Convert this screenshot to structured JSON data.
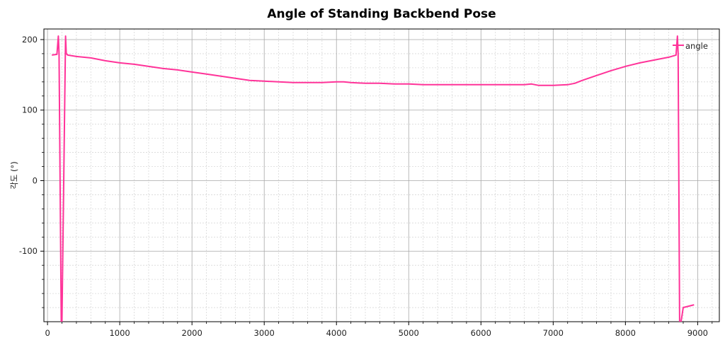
{
  "chart_data": {
    "type": "line",
    "title": "Angle of Standing Backbend Pose",
    "xlabel": "",
    "ylabel": "각도 (°)",
    "xlim": [
      -50,
      9300
    ],
    "ylim": [
      -200,
      215
    ],
    "x_ticks": [
      0,
      1000,
      2000,
      3000,
      4000,
      5000,
      6000,
      7000,
      8000,
      9000
    ],
    "y_ticks": [
      -100,
      0,
      100,
      200
    ],
    "grid": true,
    "minor_grid": true,
    "legend": "top-right",
    "series": [
      {
        "name": "angle",
        "color": "#ff3399",
        "x": [
          60,
          130,
          150,
          160,
          190,
          200,
          250,
          260,
          280,
          400,
          600,
          800,
          1000,
          1200,
          1400,
          1600,
          1800,
          2000,
          2200,
          2400,
          2600,
          2800,
          3000,
          3200,
          3400,
          3600,
          3800,
          4000,
          4100,
          4200,
          4400,
          4600,
          4800,
          5000,
          5200,
          5400,
          5600,
          5800,
          6000,
          6200,
          6400,
          6600,
          6700,
          6800,
          7000,
          7200,
          7300,
          7400,
          7600,
          7800,
          8000,
          8200,
          8400,
          8600,
          8700,
          8720,
          8730,
          8750,
          8770,
          8800,
          8950
        ],
        "y": [
          178,
          179,
          205,
          180,
          -200,
          -200,
          205,
          180,
          178,
          176,
          174,
          170,
          167,
          165,
          162,
          159,
          157,
          154,
          151,
          148,
          145,
          142,
          141,
          140,
          139,
          139,
          139,
          140,
          140,
          139,
          138,
          138,
          137,
          137,
          136,
          136,
          136,
          136,
          136,
          136,
          136,
          136,
          137,
          135,
          135,
          136,
          138,
          142,
          149,
          156,
          162,
          167,
          171,
          175,
          178,
          205,
          180,
          -200,
          -200,
          -180,
          -176
        ]
      }
    ]
  }
}
